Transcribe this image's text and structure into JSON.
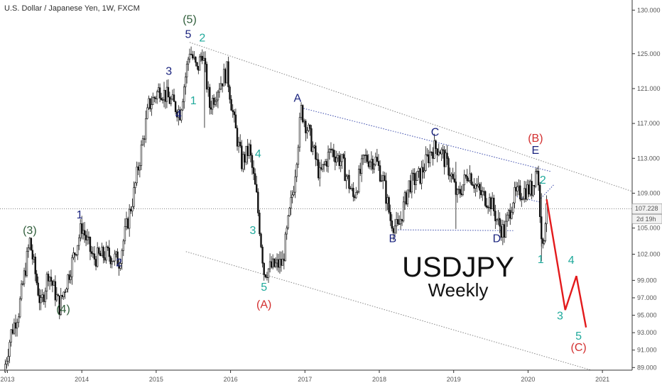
{
  "chart_data": {
    "type": "candlestick",
    "title": "U.S. Dollar / Japanese Yen, 1W, FXCM",
    "symbol": "USDJPY",
    "timeframe_label": "Weekly",
    "x_ticks": [
      "2013",
      "2014",
      "2015",
      "2016",
      "2017",
      "2018",
      "2019",
      "2020",
      "2021"
    ],
    "y_ticks": [
      "130.000",
      "125.000",
      "121.000",
      "117.000",
      "113.000",
      "109.000",
      "107.228",
      "105.000",
      "102.000",
      "99.000",
      "97.000",
      "95.000",
      "93.000",
      "91.000",
      "89.000"
    ],
    "y_range": [
      88.7,
      131
    ],
    "x_range": [
      2012.9,
      2021.4
    ],
    "last_price": "107.228",
    "countdown": "2d 19h",
    "grid": false,
    "price_path": [
      [
        2012.95,
        88.5
      ],
      [
        2013.05,
        93.0
      ],
      [
        2013.15,
        95.5
      ],
      [
        2013.3,
        103.5
      ],
      [
        2013.45,
        96.0
      ],
      [
        2013.55,
        100.0
      ],
      [
        2013.7,
        96.0
      ],
      [
        2013.85,
        100.5
      ],
      [
        2014.0,
        105.2
      ],
      [
        2014.15,
        101.5
      ],
      [
        2014.35,
        102.0
      ],
      [
        2014.5,
        101.2
      ],
      [
        2014.7,
        109.0
      ],
      [
        2014.9,
        119.0
      ],
      [
        2015.05,
        121.0
      ],
      [
        2015.2,
        119.5
      ],
      [
        2015.32,
        118.3
      ],
      [
        2015.45,
        125.5
      ],
      [
        2015.55,
        123.0
      ],
      [
        2015.62,
        125.3
      ],
      [
        2015.72,
        119.0
      ],
      [
        2015.85,
        121.5
      ],
      [
        2015.95,
        123.0
      ],
      [
        2016.05,
        117.0
      ],
      [
        2016.15,
        112.5
      ],
      [
        2016.25,
        114.0
      ],
      [
        2016.35,
        108.5
      ],
      [
        2016.45,
        100.0
      ],
      [
        2016.55,
        100.5
      ],
      [
        2016.7,
        101.0
      ],
      [
        2016.85,
        110.0
      ],
      [
        2016.95,
        118.5
      ],
      [
        2017.05,
        116.0
      ],
      [
        2017.2,
        111.0
      ],
      [
        2017.35,
        114.0
      ],
      [
        2017.5,
        112.5
      ],
      [
        2017.65,
        108.5
      ],
      [
        2017.8,
        113.0
      ],
      [
        2017.95,
        112.8
      ],
      [
        2018.05,
        110.5
      ],
      [
        2018.15,
        106.0
      ],
      [
        2018.25,
        104.8
      ],
      [
        2018.4,
        110.0
      ],
      [
        2018.55,
        111.0
      ],
      [
        2018.7,
        114.0
      ],
      [
        2018.8,
        114.3
      ],
      [
        2018.95,
        111.5
      ],
      [
        2019.05,
        108.5
      ],
      [
        2019.2,
        111.5
      ],
      [
        2019.35,
        109.0
      ],
      [
        2019.5,
        108.0
      ],
      [
        2019.6,
        105.5
      ],
      [
        2019.68,
        104.5
      ],
      [
        2019.8,
        108.5
      ],
      [
        2019.95,
        109.3
      ],
      [
        2020.05,
        109.5
      ],
      [
        2020.12,
        112.1
      ],
      [
        2020.2,
        102.2
      ],
      [
        2020.25,
        108.3
      ]
    ],
    "wave_labels": [
      {
        "text": "(3)",
        "x": 2013.3,
        "y": 104.3,
        "color": "#2f5d3a"
      },
      {
        "text": "(4)",
        "x": 2013.75,
        "y": 95.3,
        "color": "#2f5d3a"
      },
      {
        "text": "1",
        "x": 2013.97,
        "y": 106.1,
        "color": "#1a237e"
      },
      {
        "text": "2",
        "x": 2014.5,
        "y": 100.6,
        "color": "#1a237e"
      },
      {
        "text": "3",
        "x": 2015.17,
        "y": 122.6,
        "color": "#1a237e"
      },
      {
        "text": "4",
        "x": 2015.3,
        "y": 117.6,
        "color": "#1a237e"
      },
      {
        "text": "5",
        "x": 2015.43,
        "y": 126.8,
        "color": "#1a237e"
      },
      {
        "text": "(5)",
        "x": 2015.45,
        "y": 128.5,
        "color": "#2f5d3a"
      },
      {
        "text": "1",
        "x": 2015.5,
        "y": 119.2,
        "color": "#1fa99b"
      },
      {
        "text": "2",
        "x": 2015.62,
        "y": 126.4,
        "color": "#1fa99b"
      },
      {
        "text": "4",
        "x": 2016.37,
        "y": 113.1,
        "color": "#1fa99b"
      },
      {
        "text": "3",
        "x": 2016.3,
        "y": 104.3,
        "color": "#1fa99b"
      },
      {
        "text": "5",
        "x": 2016.45,
        "y": 97.8,
        "color": "#1fa99b"
      },
      {
        "text": "(A)",
        "x": 2016.45,
        "y": 95.8,
        "color": "#d32f2f"
      },
      {
        "text": "A",
        "x": 2016.9,
        "y": 119.5,
        "color": "#1a237e"
      },
      {
        "text": "B",
        "x": 2018.18,
        "y": 103.4,
        "color": "#1a237e"
      },
      {
        "text": "C",
        "x": 2018.75,
        "y": 115.6,
        "color": "#1a237e"
      },
      {
        "text": "D",
        "x": 2019.58,
        "y": 103.4,
        "color": "#1a237e"
      },
      {
        "text": "(B)",
        "x": 2020.1,
        "y": 114.9,
        "color": "#d32f2f"
      },
      {
        "text": "E",
        "x": 2020.1,
        "y": 113.5,
        "color": "#1a237e"
      },
      {
        "text": "2",
        "x": 2020.2,
        "y": 110.1,
        "color": "#1fa99b"
      },
      {
        "text": "1",
        "x": 2020.17,
        "y": 101.0,
        "color": "#1fa99b"
      },
      {
        "text": "4",
        "x": 2020.58,
        "y": 100.9,
        "color": "#1fa99b"
      },
      {
        "text": "3",
        "x": 2020.43,
        "y": 94.5,
        "color": "#1fa99b"
      },
      {
        "text": "5",
        "x": 2020.68,
        "y": 92.2,
        "color": "#1fa99b"
      },
      {
        "text": "(C)",
        "x": 2020.68,
        "y": 90.9,
        "color": "#d32f2f"
      }
    ],
    "forecast_path": [
      [
        2020.25,
        108.3
      ],
      [
        2020.5,
        95.6
      ],
      [
        2020.65,
        99.5
      ],
      [
        2020.78,
        93.6
      ]
    ],
    "channel_upper": [
      [
        2015.45,
        126.3
      ],
      [
        2021.4,
        109.2
      ]
    ],
    "channel_lower": [
      [
        2015.4,
        102.3
      ],
      [
        2020.85,
        88.7
      ]
    ],
    "triangle_upper": [
      [
        2016.95,
        118.8
      ],
      [
        2020.3,
        111.5
      ]
    ],
    "triangle_lower": [
      [
        2018.25,
        104.8
      ],
      [
        2019.8,
        104.7
      ]
    ],
    "wedge_line": [
      [
        2020.15,
        108.2
      ],
      [
        2020.35,
        110.0
      ]
    ],
    "colors": {
      "candles": "#111111",
      "forecast": "#e31a1c",
      "triangle": "#3949ab",
      "channel": "#888888",
      "price_tag": "#333333"
    }
  }
}
